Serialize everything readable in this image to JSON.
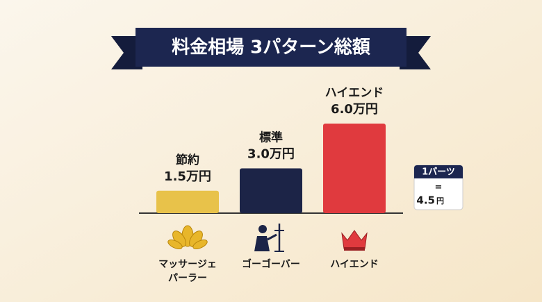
{
  "chart_data": {
    "type": "bar",
    "title": "料金相場 3パターン総額",
    "categories": [
      "節約",
      "標準",
      "ハイエンド"
    ],
    "values": [
      1.5,
      3.0,
      6.0
    ],
    "value_labels": [
      "1.5万円",
      "3.0万円",
      "6.0万円"
    ],
    "colors": [
      "#e8c24a",
      "#1c2447",
      "#e03a3e"
    ],
    "captions": [
      [
        "マッサージェ",
        "パーラー"
      ],
      [
        "ゴーゴーバー"
      ],
      [
        "ハイエンド"
      ]
    ]
  },
  "note": {
    "title": "1パーツ",
    "equals": "=",
    "value": "4.5",
    "unit": "円"
  }
}
